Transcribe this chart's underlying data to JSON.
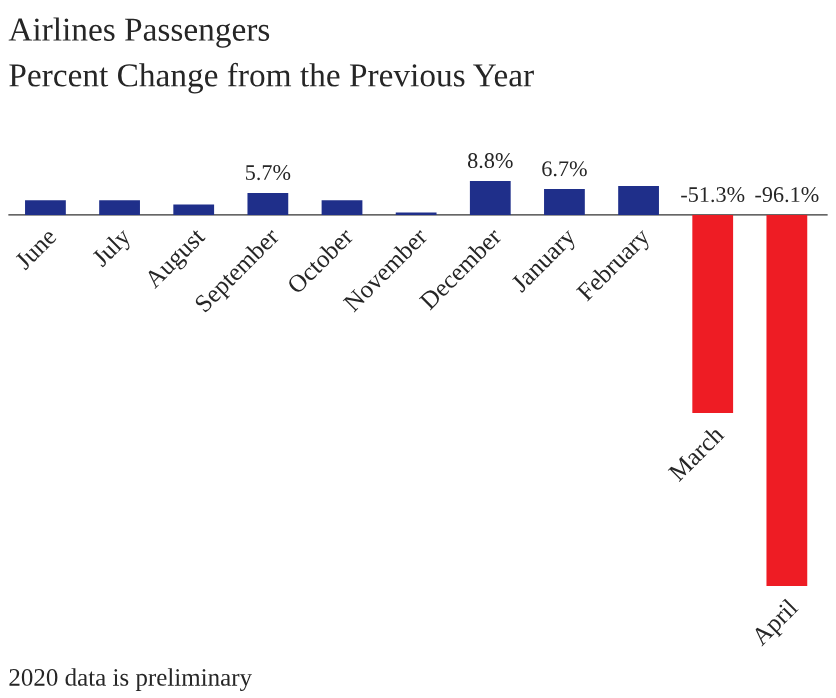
{
  "chart_data": {
    "type": "bar",
    "title": "Airlines Passengers",
    "subtitle": "Percent Change from the Previous Year",
    "categories": [
      "June",
      "July",
      "August",
      "September",
      "October",
      "November",
      "December",
      "January",
      "February",
      "March",
      "April"
    ],
    "values": [
      3.8,
      3.8,
      2.7,
      5.7,
      3.8,
      0.6,
      8.8,
      6.7,
      7.5,
      -51.3,
      -96.1
    ],
    "value_labels": [
      null,
      null,
      null,
      "5.7%",
      null,
      null,
      "8.8%",
      "6.7%",
      null,
      "-51.3%",
      "-96.1%"
    ],
    "colors": [
      "#1f2f8a",
      "#1f2f8a",
      "#1f2f8a",
      "#1f2f8a",
      "#1f2f8a",
      "#1f2f8a",
      "#1f2f8a",
      "#1f2f8a",
      "#1f2f8a",
      "#ee1c24",
      "#ee1c24"
    ],
    "annotations": [
      "2020 data is preliminary"
    ],
    "tick_labels": "x"
  }
}
